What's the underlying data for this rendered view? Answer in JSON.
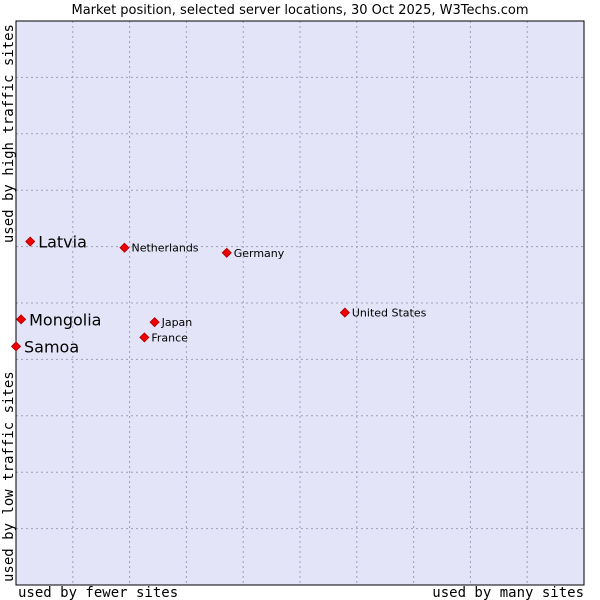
{
  "chart_data": {
    "type": "scatter",
    "title": "Market position, selected server locations, 30 Oct 2025, W3Techs.com",
    "xlabel_left": "used by fewer sites",
    "xlabel_right": "used by many sites",
    "ylabel_bottom": "used by low traffic sites",
    "ylabel_top": "used by high traffic sites",
    "xlim": [
      0,
      100
    ],
    "ylim": [
      0,
      100
    ],
    "grid": true,
    "colors": {
      "plot_background": "#e4e4f8",
      "point": "#ee0000",
      "grid": "#a0a0b8",
      "frame": "#000000"
    },
    "points": [
      {
        "name": "Latvia",
        "x": 2.5,
        "y": 60.9,
        "highlight": true
      },
      {
        "name": "Mongolia",
        "x": 0.9,
        "y": 47.1,
        "highlight": true
      },
      {
        "name": "Samoa",
        "x": 0.0,
        "y": 42.3,
        "highlight": true
      },
      {
        "name": "Netherlands",
        "x": 19.1,
        "y": 59.8,
        "highlight": false
      },
      {
        "name": "Germany",
        "x": 37.1,
        "y": 58.9,
        "highlight": false
      },
      {
        "name": "United States",
        "x": 57.9,
        "y": 48.3,
        "highlight": false
      },
      {
        "name": "Japan",
        "x": 24.4,
        "y": 46.6,
        "highlight": false
      },
      {
        "name": "France",
        "x": 22.6,
        "y": 43.9,
        "highlight": false
      }
    ]
  }
}
